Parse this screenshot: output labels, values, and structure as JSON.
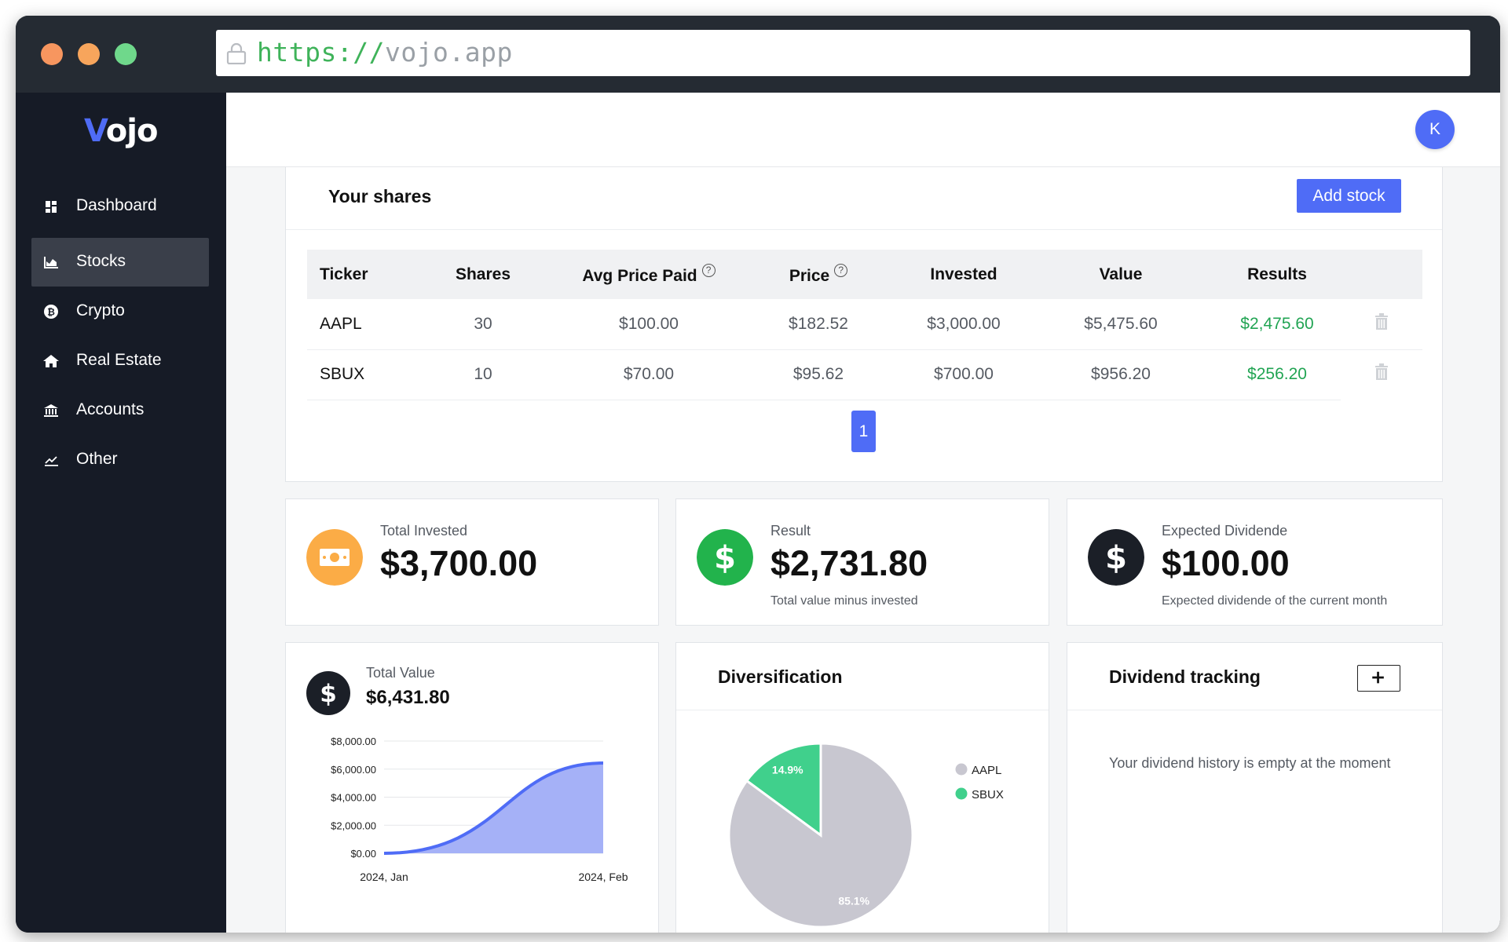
{
  "browser": {
    "url_protocol": "https://",
    "url_host": "vojo.app"
  },
  "app": {
    "logo_first": "V",
    "logo_rest": "ojo",
    "user_initial": "K",
    "accent_color": "#4f6cf6"
  },
  "sidebar": {
    "items": [
      {
        "label": "Dashboard",
        "icon": "dashboard-icon",
        "active": false
      },
      {
        "label": "Stocks",
        "icon": "chart-area-icon",
        "active": true
      },
      {
        "label": "Crypto",
        "icon": "bitcoin-icon",
        "active": false
      },
      {
        "label": "Real Estate",
        "icon": "home-icon",
        "active": false
      },
      {
        "label": "Accounts",
        "icon": "bank-icon",
        "active": false
      },
      {
        "label": "Other",
        "icon": "line-chart-icon",
        "active": false
      }
    ]
  },
  "shares": {
    "title": "Your shares",
    "add_label": "Add stock",
    "columns": [
      "Ticker",
      "Shares",
      "Avg Price Paid",
      "Price",
      "Invested",
      "Value",
      "Results"
    ],
    "help_mark": "?",
    "rows": [
      {
        "ticker": "AAPL",
        "shares": "30",
        "avg": "$100.00",
        "price": "$182.52",
        "invested": "$3,000.00",
        "value": "$5,475.60",
        "result": "$2,475.60"
      },
      {
        "ticker": "SBUX",
        "shares": "10",
        "avg": "$70.00",
        "price": "$95.62",
        "invested": "$700.00",
        "value": "$956.20",
        "result": "$256.20"
      }
    ],
    "page": "1"
  },
  "stats": {
    "invested": {
      "label": "Total Invested",
      "value": "$3,700.00"
    },
    "result": {
      "label": "Result",
      "value": "$2,731.80",
      "sub": "Total value minus invested"
    },
    "dividend": {
      "label": "Expected Dividende",
      "value": "$100.00",
      "sub": "Expected dividende of the current month"
    }
  },
  "total_value": {
    "label": "Total Value",
    "value": "$6,431.80"
  },
  "diversification": {
    "title": "Diversification"
  },
  "dividend_tracking": {
    "title": "Dividend tracking",
    "empty": "Your dividend history is empty at the moment"
  },
  "chart_data": [
    {
      "type": "area",
      "x": [
        "2024, Jan",
        "2024, Feb"
      ],
      "values": [
        0,
        6431.8
      ],
      "y_ticks": [
        "$8,000.00",
        "$6,000.00",
        "$4,000.00",
        "$2,000.00",
        "$0.00"
      ],
      "ylim": [
        0,
        8000
      ],
      "grid": "horizontal",
      "fill_color": "#a5b1f7",
      "line_color": "#4f6cf6"
    },
    {
      "type": "pie",
      "slices": [
        {
          "name": "AAPL",
          "value": 85.1,
          "label": "85.1%",
          "color": "#c8c7d0"
        },
        {
          "name": "SBUX",
          "value": 14.9,
          "label": "14.9%",
          "color": "#40d08c"
        }
      ],
      "legend": "right"
    }
  ]
}
